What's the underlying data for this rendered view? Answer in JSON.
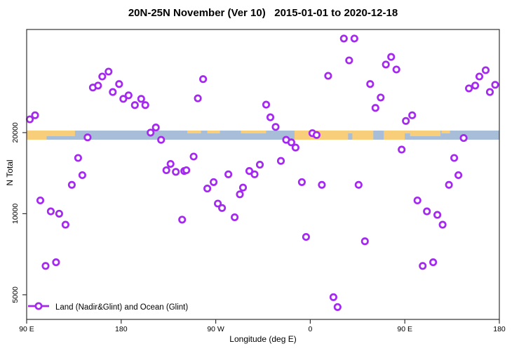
{
  "chart_data": {
    "type": "scatter",
    "title": "20N-25N November (Ver 10)   2015-01-01 to 2020-12-18",
    "xlabel": "Longitude (deg E)",
    "ylabel": "N Total",
    "x_axis": {
      "range": [
        90,
        540
      ],
      "ticks": [
        {
          "value": 90,
          "label": "90 E"
        },
        {
          "value": 180,
          "label": "180"
        },
        {
          "value": 270,
          "label": "90 W"
        },
        {
          "value": 360,
          "label": "0"
        },
        {
          "value": 450,
          "label": "90 E"
        },
        {
          "value": 540,
          "label": "180"
        }
      ]
    },
    "y_axis": {
      "scale": "log2",
      "range": [
        4050,
        48300
      ],
      "ticks": [
        {
          "value": 20000,
          "label": "20000"
        },
        {
          "value": 10000,
          "label": "10000"
        },
        {
          "value": 5000,
          "label": "5000"
        }
      ]
    },
    "legend": {
      "label": "Land (Nadir&Glint) and Ocean (Glint)",
      "position": "bottom-left"
    },
    "colors": {
      "marker": "#A428F0",
      "land": "#F8CE7B",
      "ocean": "#A8BDD8",
      "axis": "#333333"
    },
    "map_band": {
      "center_value": 20000,
      "patches": [
        {
          "from": 90,
          "to": 109,
          "cover": "full"
        },
        {
          "from": 109,
          "to": 136,
          "cover": "top"
        },
        {
          "from": 243,
          "to": 256,
          "cover": "speck"
        },
        {
          "from": 262,
          "to": 274,
          "cover": "speck"
        },
        {
          "from": 294,
          "to": 318,
          "cover": "speck"
        },
        {
          "from": 345,
          "to": 396,
          "cover": "full"
        },
        {
          "from": 396,
          "to": 400,
          "cover": "speck"
        },
        {
          "from": 400,
          "to": 420,
          "cover": "full"
        },
        {
          "from": 430,
          "to": 450,
          "cover": "full"
        },
        {
          "from": 450,
          "to": 455,
          "cover": "speck"
        },
        {
          "from": 455,
          "to": 484,
          "cover": "top"
        },
        {
          "from": 485,
          "to": 493,
          "cover": "speck"
        }
      ]
    },
    "points": [
      [
        93,
        22400
      ],
      [
        98,
        23200
      ],
      [
        153,
        29400
      ],
      [
        158,
        29900
      ],
      [
        162,
        32300
      ],
      [
        168,
        33700
      ],
      [
        172,
        28300
      ],
      [
        178,
        30300
      ],
      [
        182,
        26700
      ],
      [
        187,
        27500
      ],
      [
        193,
        25300
      ],
      [
        199,
        26700
      ],
      [
        203,
        25300
      ],
      [
        148,
        19200
      ],
      [
        208,
        20000
      ],
      [
        213,
        20900
      ],
      [
        218,
        18800
      ],
      [
        253,
        26800
      ],
      [
        258,
        31600
      ],
      [
        318,
        25400
      ],
      [
        322,
        22800
      ],
      [
        327,
        21000
      ],
      [
        377,
        32500
      ],
      [
        392,
        44700
      ],
      [
        402,
        44700
      ],
      [
        397,
        37100
      ],
      [
        417,
        30300
      ],
      [
        422,
        24700
      ],
      [
        427,
        27000
      ],
      [
        432,
        35800
      ],
      [
        437,
        38200
      ],
      [
        442,
        34300
      ],
      [
        451,
        22100
      ],
      [
        457,
        23200
      ],
      [
        511,
        29200
      ],
      [
        517,
        29900
      ],
      [
        521,
        32300
      ],
      [
        527,
        34100
      ],
      [
        531,
        28300
      ],
      [
        536,
        30100
      ],
      [
        103,
        11200
      ],
      [
        113,
        10200
      ],
      [
        121,
        10000
      ],
      [
        127,
        9100
      ],
      [
        133,
        12800
      ],
      [
        139,
        16100
      ],
      [
        143,
        13900
      ],
      [
        223,
        14500
      ],
      [
        227,
        15300
      ],
      [
        232,
        14300
      ],
      [
        240,
        14400
      ],
      [
        238,
        9500
      ],
      [
        108,
        6400
      ],
      [
        118,
        6600
      ],
      [
        337,
        18800
      ],
      [
        342,
        18400
      ],
      [
        346,
        17600
      ],
      [
        362,
        19900
      ],
      [
        366,
        19600
      ],
      [
        242,
        14500
      ],
      [
        249,
        16300
      ],
      [
        262,
        12400
      ],
      [
        268,
        13100
      ],
      [
        272,
        10900
      ],
      [
        276,
        10500
      ],
      [
        282,
        14000
      ],
      [
        288,
        9700
      ],
      [
        293,
        11800
      ],
      [
        296,
        12500
      ],
      [
        302,
        14400
      ],
      [
        307,
        14000
      ],
      [
        312,
        15200
      ],
      [
        332,
        15700
      ],
      [
        352,
        13100
      ],
      [
        371,
        12800
      ],
      [
        356,
        8200
      ],
      [
        382,
        4900
      ],
      [
        386,
        4500
      ],
      [
        406,
        12800
      ],
      [
        412,
        7900
      ],
      [
        447,
        17300
      ],
      [
        462,
        11200
      ],
      [
        467,
        6400
      ],
      [
        471,
        10200
      ],
      [
        477,
        6600
      ],
      [
        481,
        9900
      ],
      [
        486,
        9100
      ],
      [
        492,
        12800
      ],
      [
        497,
        16100
      ],
      [
        501,
        13900
      ],
      [
        506,
        19100
      ]
    ]
  }
}
